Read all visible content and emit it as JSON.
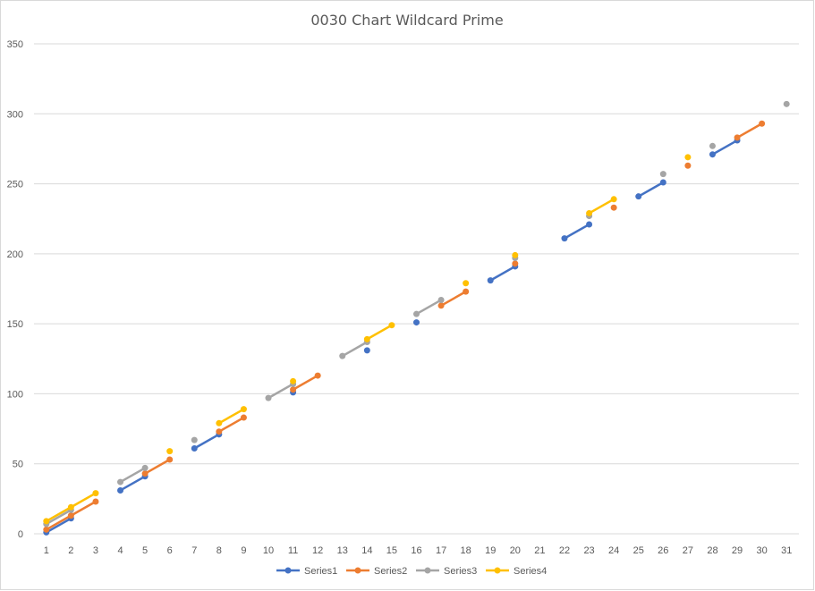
{
  "chart_data": {
    "type": "line",
    "title": "0030 Chart Wildcard Prime",
    "xlabel": "",
    "ylabel": "",
    "categories": [
      "1",
      "2",
      "3",
      "4",
      "5",
      "6",
      "7",
      "8",
      "9",
      "10",
      "11",
      "12",
      "13",
      "14",
      "15",
      "16",
      "17",
      "18",
      "19",
      "20",
      "21",
      "22",
      "23",
      "24",
      "25",
      "26",
      "27",
      "28",
      "29",
      "30",
      "31"
    ],
    "ylim": [
      0,
      350
    ],
    "yticks": [
      0,
      50,
      100,
      150,
      200,
      250,
      300,
      350
    ],
    "grid": true,
    "legend_position": "bottom",
    "series": [
      {
        "name": "Series1",
        "color": "#4472C4",
        "values": [
          1,
          11,
          null,
          31,
          41,
          null,
          61,
          71,
          null,
          null,
          101,
          null,
          null,
          131,
          null,
          151,
          null,
          null,
          181,
          191,
          null,
          211,
          221,
          null,
          241,
          251,
          null,
          271,
          281,
          null,
          null
        ]
      },
      {
        "name": "Series2",
        "color": "#ED7D31",
        "values": [
          3,
          13,
          23,
          null,
          43,
          53,
          null,
          73,
          83,
          null,
          103,
          113,
          null,
          null,
          null,
          null,
          163,
          173,
          null,
          193,
          null,
          null,
          null,
          233,
          null,
          null,
          263,
          null,
          283,
          293,
          null
        ]
      },
      {
        "name": "Series3",
        "color": "#A5A5A5",
        "values": [
          7,
          17,
          null,
          37,
          47,
          null,
          67,
          null,
          null,
          97,
          107,
          null,
          127,
          137,
          null,
          157,
          167,
          null,
          null,
          197,
          null,
          null,
          227,
          null,
          null,
          257,
          null,
          277,
          null,
          null,
          307
        ]
      },
      {
        "name": "Series4",
        "color": "#FFC000",
        "values": [
          9,
          19,
          29,
          null,
          null,
          59,
          null,
          79,
          89,
          null,
          109,
          null,
          null,
          139,
          149,
          null,
          null,
          179,
          null,
          199,
          null,
          null,
          229,
          239,
          null,
          null,
          269,
          null,
          null,
          null,
          null
        ]
      }
    ]
  }
}
